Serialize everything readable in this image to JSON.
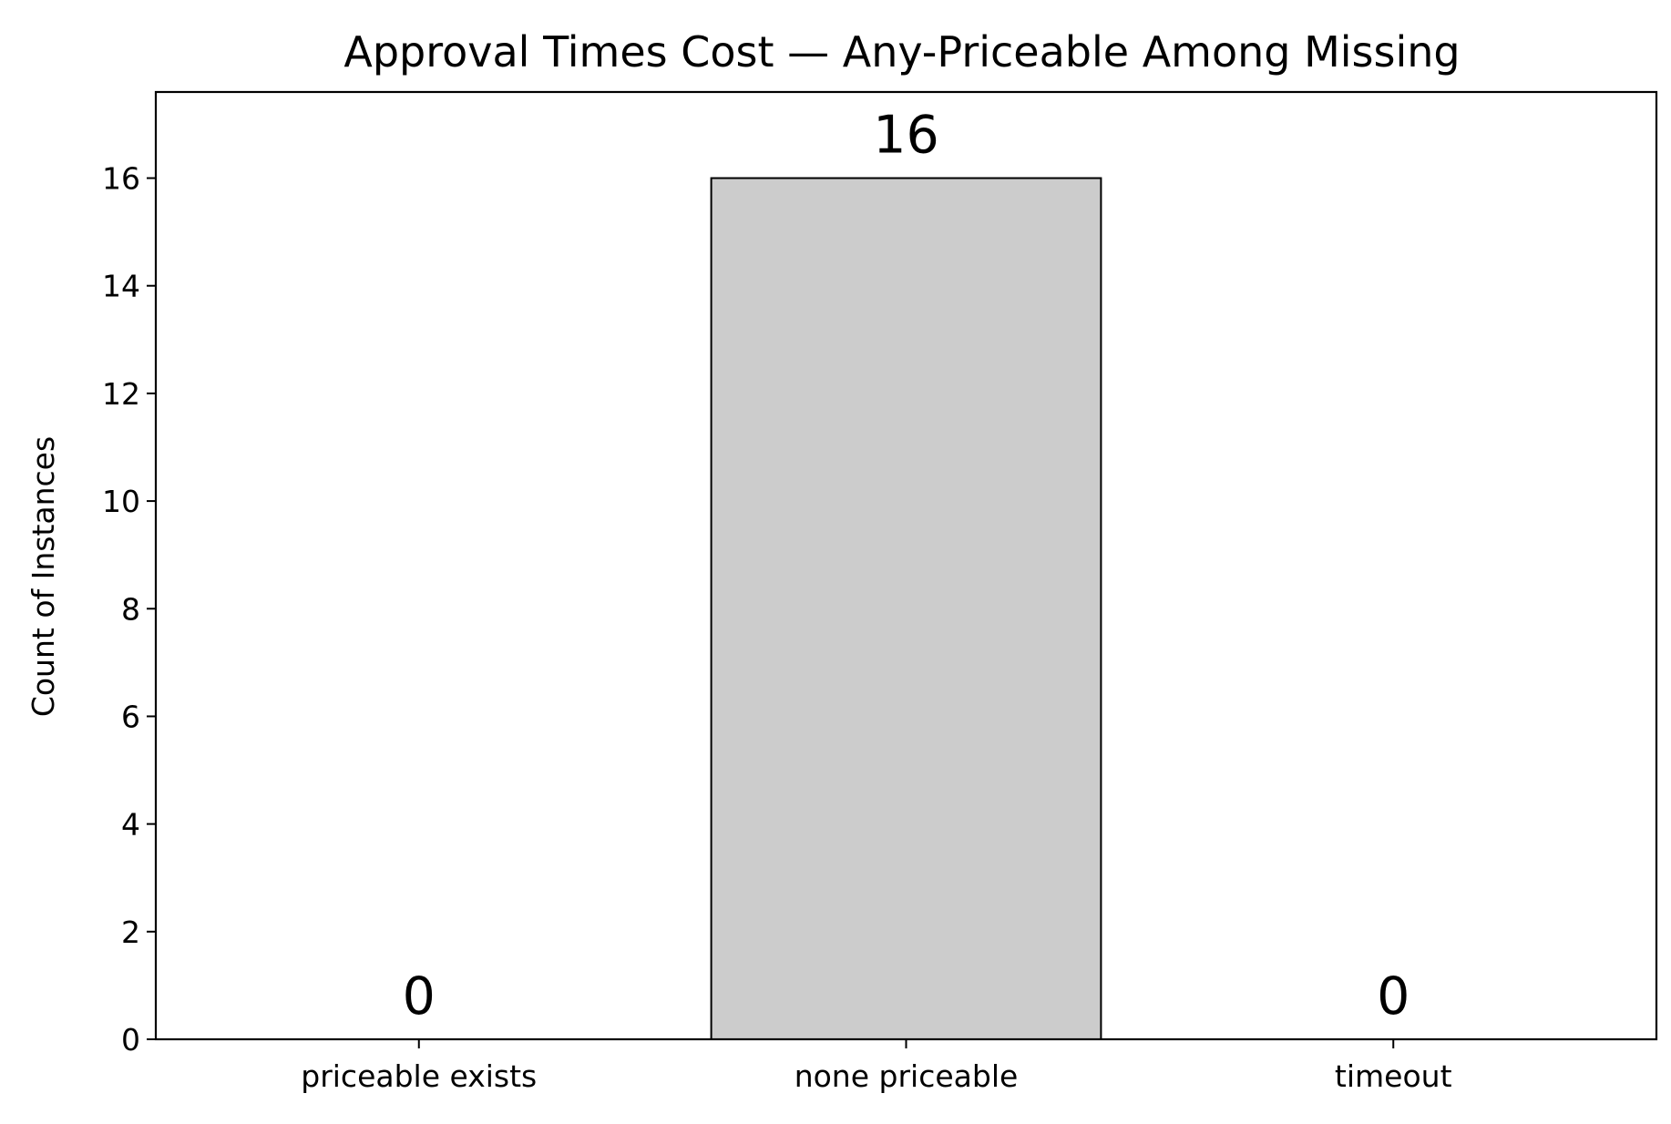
{
  "chart_data": {
    "type": "bar",
    "title": "Approval Times Cost — Any-Priceable Among Missing",
    "xlabel": "",
    "ylabel": "Count of Instances",
    "categories": [
      "priceable exists",
      "none priceable",
      "timeout"
    ],
    "values": [
      0,
      16,
      0
    ],
    "data_labels": [
      "0",
      "16",
      "0"
    ],
    "ylim": [
      0,
      17.6
    ],
    "yticks": [
      0,
      2,
      4,
      6,
      8,
      10,
      12,
      14,
      16
    ],
    "grid": false,
    "legend": "none",
    "colors": {
      "bar_fill": "#cccccc",
      "bar_edge": "#000000",
      "axes": "#000000",
      "background": "#ffffff"
    }
  }
}
